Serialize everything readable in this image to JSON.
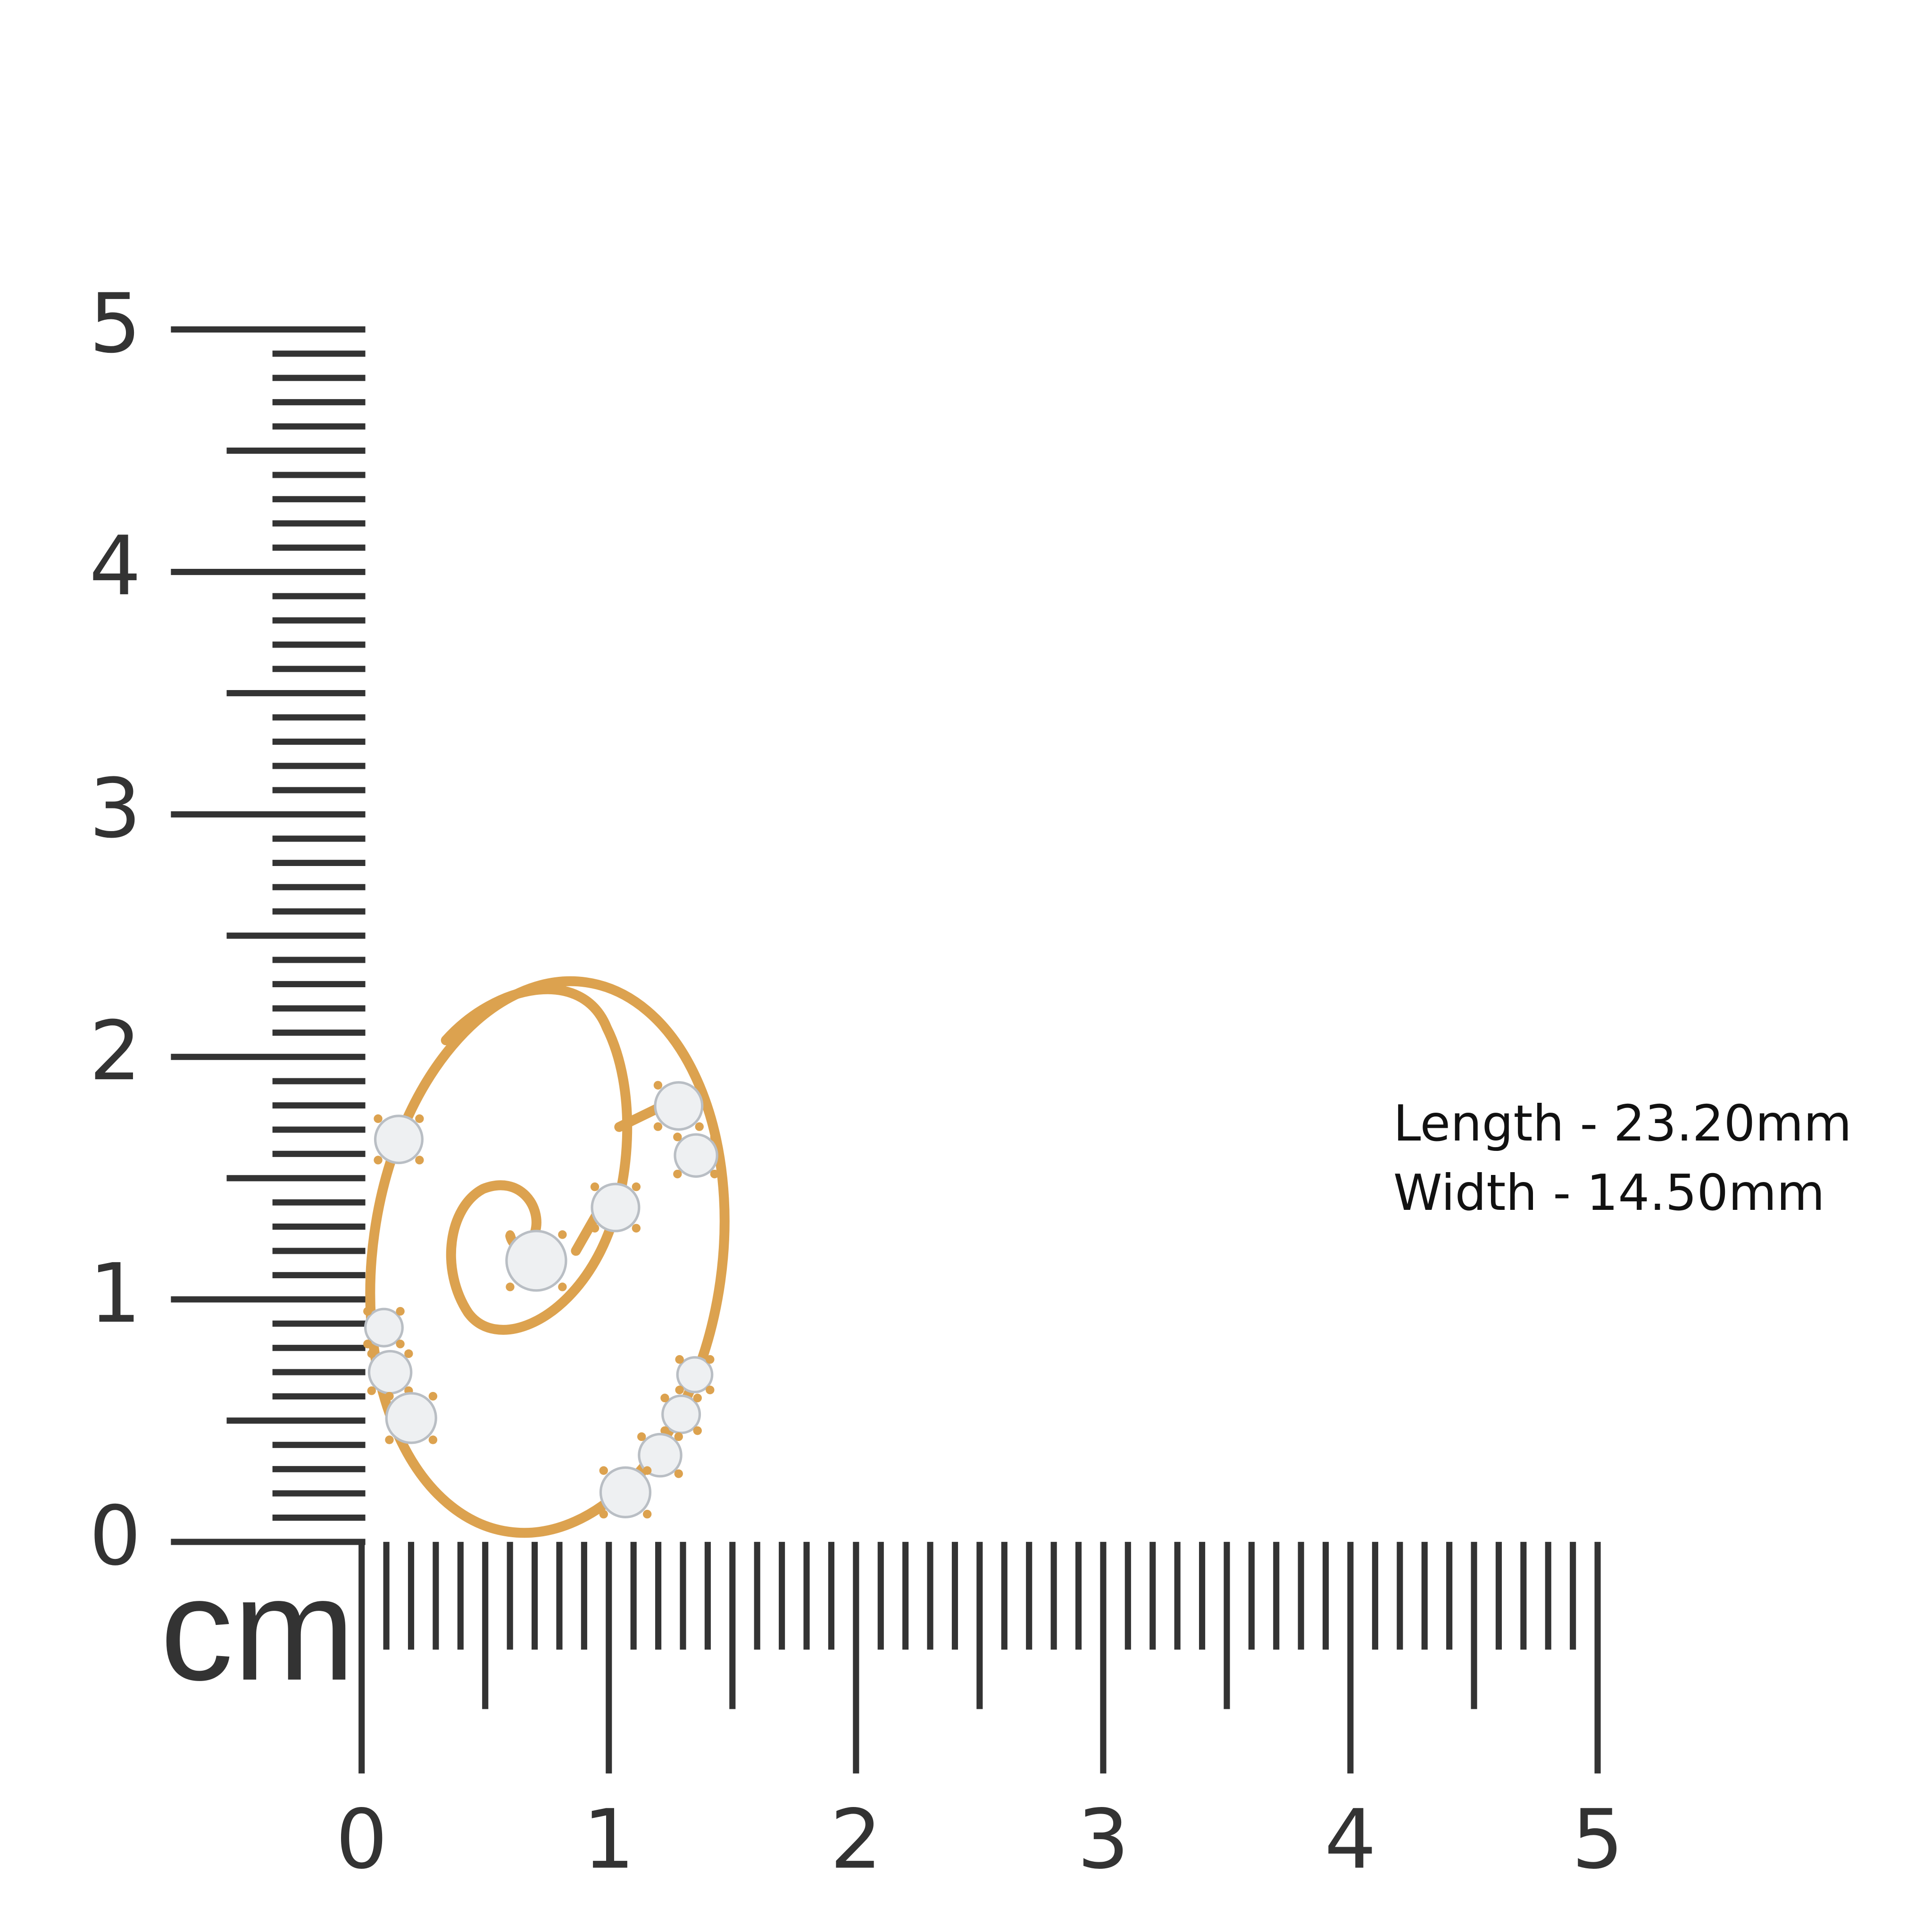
{
  "ruler": {
    "unit": "cm",
    "vertical_labels": [
      "0",
      "1",
      "2",
      "3",
      "4",
      "5"
    ],
    "horizontal_labels": [
      "0",
      "1",
      "2",
      "3",
      "4",
      "5"
    ]
  },
  "dimensions": {
    "length": "Length - 23.20mm",
    "width": "Width - 14.50mm"
  }
}
